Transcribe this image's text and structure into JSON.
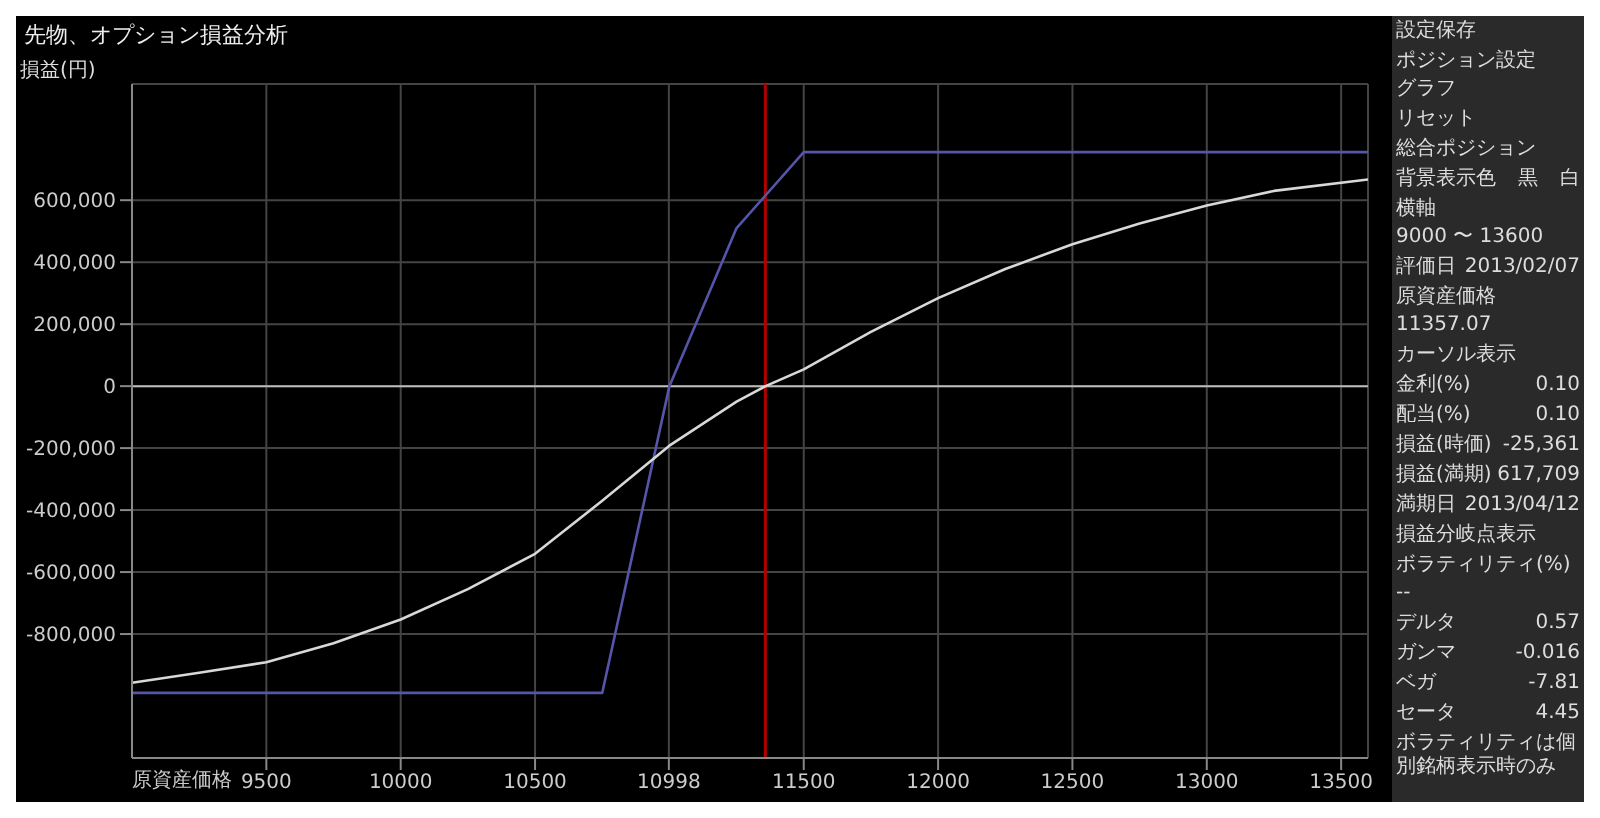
{
  "chart_data": {
    "type": "line",
    "title": "先物、オプション損益分析",
    "xlabel": "原資産価格",
    "ylabel": "損益(円)",
    "xlim": [
      9000,
      13600
    ],
    "xticks": [
      9500,
      10000,
      10500,
      10998,
      11500,
      12000,
      12500,
      13000,
      13500
    ],
    "ylim": [
      -1200000,
      975000
    ],
    "yticks": [
      {
        "value": -800000,
        "label": "-800,000"
      },
      {
        "value": -600000,
        "label": "-600,000"
      },
      {
        "value": -400000,
        "label": "-400,000"
      },
      {
        "value": -200000,
        "label": "-200,000"
      },
      0,
      {
        "value": 200000,
        "label": "200,000"
      },
      {
        "value": 400000,
        "label": "400,000"
      },
      {
        "value": 600000,
        "label": "600,000"
      }
    ],
    "grid": true,
    "marker": "none",
    "line_style": "solid",
    "series": [
      {
        "color": "#5555aa",
        "x": [
          9000,
          10750,
          11000,
          11250,
          11500,
          13600
        ],
        "values": [
          -990000,
          -990000,
          0,
          510000,
          755000,
          755000
        ]
      },
      {
        "color": "#d8d8d8",
        "x": [
          9000,
          9250,
          9500,
          9750,
          10000,
          10250,
          10500,
          10750,
          11000,
          11250,
          11358,
          11500,
          11750,
          12000,
          12250,
          12500,
          12750,
          13000,
          13250,
          13600
        ],
        "values": [
          -957000,
          -925000,
          -891000,
          -830000,
          -753000,
          -655000,
          -541000,
          -370000,
          -192000,
          -50000,
          0,
          54000,
          175000,
          284000,
          378000,
          458000,
          525000,
          583000,
          630000,
          667000
        ]
      }
    ],
    "ref_lines": [
      {
        "axis": "x",
        "value": 11357.07,
        "color": "#b00000"
      },
      {
        "axis": "y",
        "value": 0,
        "color": "#bbbbbb"
      }
    ],
    "annotations": [
      "設定保存",
      "ポジション設定",
      "グラフ",
      "リセット",
      "総合ポジション",
      "背景表示色",
      "黒",
      "白",
      "横軸",
      "9000 〜 13600",
      "評価日",
      "2013/02/07",
      "原資産価格",
      "11357.07",
      "カーソル表示",
      "金利(%)",
      "0.10",
      "配当(%)",
      "0.10",
      "損益(時価)",
      "-25,361",
      "損益(満期)",
      "617,709",
      "満期日",
      "2013/04/12",
      "損益分岐点表示",
      "ボラティリティ(%)",
      "--",
      "デルタ",
      "0.57",
      "ガンマ",
      "-0.016",
      "ベガ",
      "-7.81",
      "セータ",
      "4.45",
      "ボラティリティは個別銘柄表示時のみ"
    ]
  }
}
